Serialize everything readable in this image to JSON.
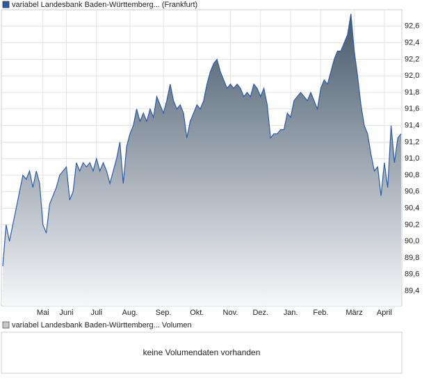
{
  "chart_data": {
    "type": "area",
    "categories": [
      null,
      null,
      null,
      null,
      null,
      null,
      null,
      null,
      null,
      null,
      null,
      null,
      "Mai",
      null,
      null,
      null,
      null,
      null,
      null,
      "Juni",
      null,
      null,
      null,
      null,
      null,
      null,
      null,
      null,
      "Juli",
      null,
      null,
      null,
      null,
      null,
      null,
      null,
      null,
      null,
      "Aug.",
      null,
      null,
      null,
      null,
      null,
      null,
      null,
      null,
      null,
      "Sep.",
      null,
      null,
      null,
      null,
      null,
      null,
      null,
      null,
      null,
      "Okt.",
      null,
      null,
      null,
      null,
      null,
      null,
      null,
      null,
      null,
      "Nov.",
      null,
      null,
      null,
      null,
      null,
      null,
      null,
      null,
      "Dez.",
      null,
      null,
      null,
      null,
      null,
      null,
      null,
      null,
      "Jan.",
      null,
      null,
      null,
      null,
      null,
      null,
      null,
      null,
      "Feb.",
      null,
      null,
      null,
      null,
      null,
      null,
      null,
      null,
      null,
      "März",
      null,
      null,
      null,
      null,
      null,
      null,
      null,
      null,
      "April",
      null,
      null,
      null,
      null,
      null
    ],
    "series": [
      {
        "name": "variabel Landesbank Baden-Württemberg... (Frankfurt)",
        "color": "#2a5ba8",
        "values": [
          89.7,
          90.2,
          90.0,
          90.2,
          90.4,
          90.6,
          90.8,
          90.75,
          90.85,
          90.65,
          90.85,
          90.7,
          90.2,
          90.1,
          90.45,
          90.55,
          90.65,
          90.8,
          90.85,
          90.9,
          90.5,
          90.6,
          90.95,
          90.85,
          90.95,
          90.9,
          90.95,
          90.85,
          91.0,
          90.85,
          90.95,
          90.85,
          90.7,
          90.85,
          91.0,
          91.2,
          90.7,
          91.15,
          91.3,
          91.4,
          91.6,
          91.45,
          91.55,
          91.45,
          91.6,
          91.5,
          91.75,
          91.65,
          91.55,
          91.7,
          91.9,
          91.7,
          91.6,
          91.65,
          91.55,
          91.25,
          91.45,
          91.55,
          91.65,
          91.6,
          91.7,
          91.9,
          92.05,
          92.15,
          92.2,
          92.05,
          91.95,
          91.85,
          91.9,
          91.85,
          91.9,
          91.85,
          91.75,
          91.8,
          91.75,
          91.9,
          91.85,
          91.75,
          91.85,
          91.65,
          91.25,
          91.3,
          91.3,
          91.35,
          91.35,
          91.55,
          91.5,
          91.7,
          91.75,
          91.8,
          91.75,
          91.7,
          91.8,
          91.7,
          91.6,
          91.85,
          91.95,
          91.9,
          92.05,
          92.2,
          92.3,
          92.3,
          92.4,
          92.5,
          92.75,
          92.3,
          92.0,
          91.65,
          91.4,
          91.3,
          91.05,
          90.85,
          90.9,
          90.55,
          90.95,
          90.65,
          91.4,
          90.95,
          91.25,
          91.3
        ]
      }
    ],
    "ylim": [
      89.22,
      92.8
    ],
    "yticks": [
      {
        "value": 89.4,
        "label": "89,4"
      },
      {
        "value": 89.6,
        "label": "89,6"
      },
      {
        "value": 89.8,
        "label": "89,8"
      },
      {
        "value": 90.0,
        "label": "90,0"
      },
      {
        "value": 90.2,
        "label": "90,2"
      },
      {
        "value": 90.4,
        "label": "90,4"
      },
      {
        "value": 90.6,
        "label": "90,6"
      },
      {
        "value": 90.8,
        "label": "90,8"
      },
      {
        "value": 91.0,
        "label": "91,0"
      },
      {
        "value": 91.2,
        "label": "91,2"
      },
      {
        "value": 91.4,
        "label": "91,4"
      },
      {
        "value": 91.6,
        "label": "91,6"
      },
      {
        "value": 91.8,
        "label": "91,8"
      },
      {
        "value": 92.0,
        "label": "92,0"
      },
      {
        "value": 92.2,
        "label": "92,2"
      },
      {
        "value": 92.4,
        "label": "92,4"
      },
      {
        "value": 92.6,
        "label": "92,6"
      }
    ],
    "grid": true
  },
  "volume_panel": {
    "legend": "variabel Landesbank Baden-Württemberg... Volumen",
    "message": "keine Volumendaten vorhanden"
  }
}
